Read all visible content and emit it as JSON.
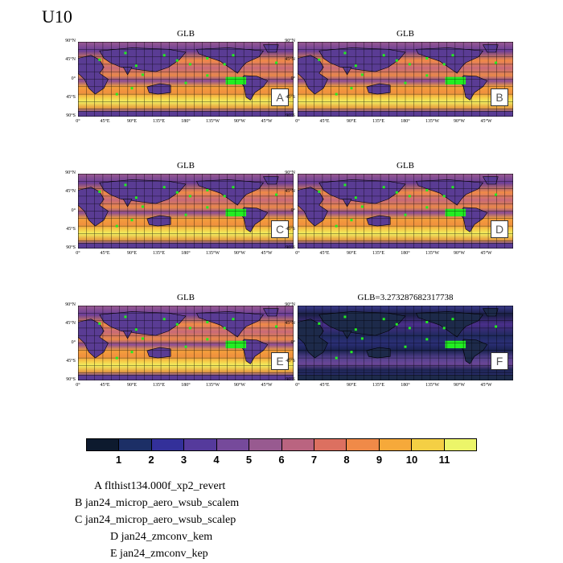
{
  "page_title": "U10",
  "panels": [
    {
      "title": "GLB",
      "letter": "A",
      "style": "bright"
    },
    {
      "title": "GLB",
      "letter": "B",
      "style": "bright"
    },
    {
      "title": "GLB",
      "letter": "C",
      "style": "bright"
    },
    {
      "title": "GLB",
      "letter": "D",
      "style": "bright"
    },
    {
      "title": "GLB",
      "letter": "E",
      "style": "bright"
    },
    {
      "title": "GLB=3.273287682317738",
      "letter": "F",
      "style": "dark"
    }
  ],
  "lat_labels": [
    "90°N",
    "45°N",
    "0°",
    "45°S",
    "90°S"
  ],
  "lon_labels": [
    "0°",
    "45°E",
    "90°E",
    "135°E",
    "180°",
    "135°W",
    "90°W",
    "45°W"
  ],
  "colorbar": {
    "colors": [
      "#0d1a2e",
      "#1c2f66",
      "#33309a",
      "#553a9c",
      "#764a9b",
      "#985a90",
      "#ba6480",
      "#dc7060",
      "#f08a48",
      "#f6a93a",
      "#f4cf44",
      "#ecf569"
    ],
    "labels": [
      "1",
      "2",
      "3",
      "4",
      "5",
      "6",
      "7",
      "8",
      "9",
      "10",
      "11"
    ]
  },
  "legend": [
    "A  flthist134.000f_xp2_revert",
    "B  jan24_microp_aero_wsub_scalem",
    "C  jan24_microp_aero_wsub_scalep",
    "D  jan24_zmconv_kem",
    "E  jan24_zmconv_kep"
  ],
  "marker_color": "#22ee22"
}
